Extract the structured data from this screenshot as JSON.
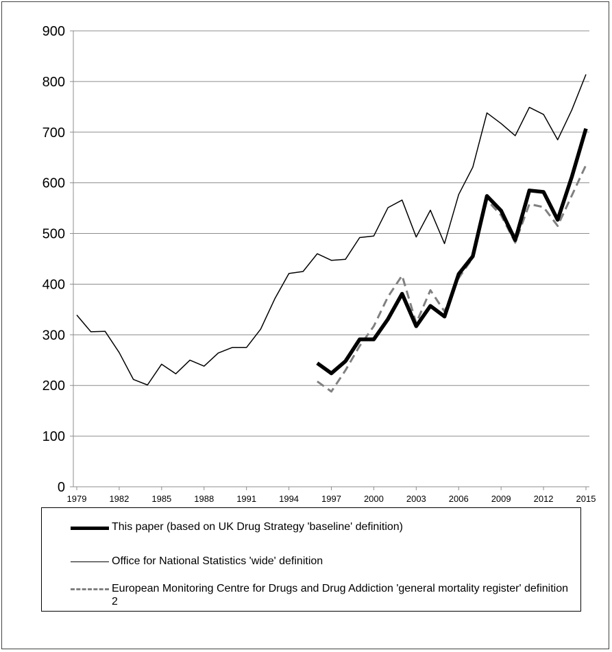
{
  "chart_data": {
    "type": "line",
    "title": "",
    "xlabel": "",
    "ylabel": "",
    "ylim": [
      0,
      900
    ],
    "yticks": [
      0,
      100,
      200,
      300,
      400,
      500,
      600,
      700,
      800,
      900
    ],
    "xlim": [
      1979,
      2015
    ],
    "xticks": [
      1979,
      1982,
      1985,
      1988,
      1991,
      1994,
      1997,
      2000,
      2003,
      2006,
      2009,
      2012,
      2015
    ],
    "grid": "horizontal",
    "legend_position": "bottom",
    "series": [
      {
        "name": "This paper (based on UK Drug Strategy 'baseline' definition)",
        "style": "thick-solid",
        "color": "#000000",
        "x": [
          1996,
          1997,
          1998,
          1999,
          2000,
          2001,
          2002,
          2003,
          2004,
          2005,
          2006,
          2007,
          2008,
          2009,
          2010,
          2011,
          2012,
          2013,
          2014,
          2015
        ],
        "values": [
          244,
          224,
          248,
          291,
          291,
          331,
          381,
          317,
          357,
          336,
          420,
          455,
          574,
          545,
          487,
          585,
          582,
          527,
          612,
          707
        ]
      },
      {
        "name": "Office for National Statistics 'wide' definition",
        "style": "thin-solid",
        "color": "#000000",
        "x": [
          1979,
          1980,
          1981,
          1982,
          1983,
          1984,
          1985,
          1986,
          1987,
          1988,
          1989,
          1990,
          1991,
          1992,
          1993,
          1994,
          1995,
          1996,
          1997,
          1998,
          1999,
          2000,
          2001,
          2002,
          2003,
          2004,
          2005,
          2006,
          2007,
          2008,
          2009,
          2010,
          2011,
          2012,
          2013,
          2014,
          2015
        ],
        "values": [
          339,
          306,
          307,
          265,
          212,
          201,
          242,
          223,
          250,
          238,
          264,
          275,
          275,
          311,
          371,
          421,
          425,
          460,
          447,
          449,
          492,
          495,
          551,
          566,
          493,
          546,
          480,
          577,
          631,
          738,
          717,
          693,
          749,
          735,
          685,
          744,
          814
        ]
      },
      {
        "name": "European Monitoring Centre for Drugs and Drug Addiction 'general mortality register' definition 2",
        "style": "dashed",
        "color": "#808080",
        "x": [
          1996,
          1997,
          1998,
          1999,
          2000,
          2001,
          2002,
          2003,
          2004,
          2005,
          2006,
          2007,
          2008,
          2009,
          2010,
          2011,
          2012,
          2013,
          2014,
          2015
        ],
        "values": [
          208,
          188,
          230,
          278,
          317,
          375,
          417,
          323,
          388,
          346,
          412,
          452,
          566,
          536,
          482,
          558,
          552,
          515,
          575,
          635
        ]
      }
    ]
  }
}
